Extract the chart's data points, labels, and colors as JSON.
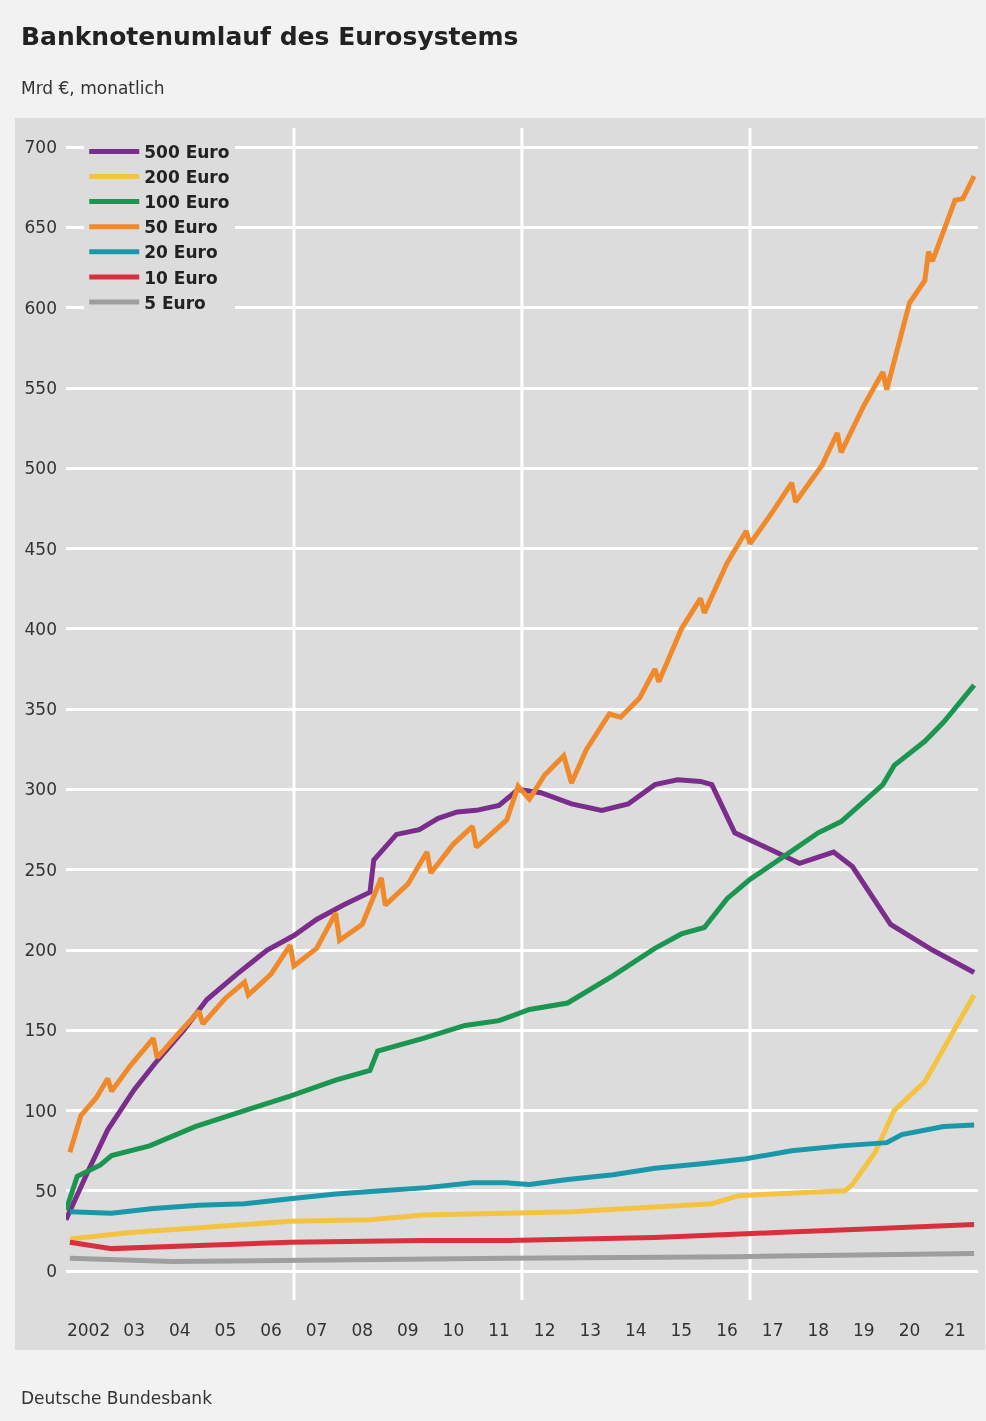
{
  "chart_data": {
    "type": "line",
    "title": "Banknotenumlauf des Eurosystems",
    "subtitle": "Mrd €, monatlich",
    "annotations": [
      "Deutsche Bundesbank"
    ],
    "xlim": [
      "2002-01",
      "2022-01"
    ],
    "ylim": [
      -18,
      712
    ],
    "xticks": [
      {
        "value": "2002-07",
        "label": "2002"
      },
      {
        "value": "2003-07",
        "label": "03"
      },
      {
        "value": "2004-07",
        "label": "04"
      },
      {
        "value": "2005-07",
        "label": "05"
      },
      {
        "value": "2006-07",
        "label": "06"
      },
      {
        "value": "2007-07",
        "label": "07"
      },
      {
        "value": "2008-07",
        "label": "08"
      },
      {
        "value": "2009-07",
        "label": "09"
      },
      {
        "value": "2010-07",
        "label": "10"
      },
      {
        "value": "2011-07",
        "label": "11"
      },
      {
        "value": "2012-07",
        "label": "12"
      },
      {
        "value": "2013-07",
        "label": "13"
      },
      {
        "value": "2014-07",
        "label": "14"
      },
      {
        "value": "2015-07",
        "label": "15"
      },
      {
        "value": "2016-07",
        "label": "16"
      },
      {
        "value": "2017-07",
        "label": "17"
      },
      {
        "value": "2018-07",
        "label": "18"
      },
      {
        "value": "2019-07",
        "label": "19"
      },
      {
        "value": "2020-07",
        "label": "20"
      },
      {
        "value": "2021-07",
        "label": "21"
      }
    ],
    "yticks": [
      0,
      50,
      100,
      150,
      200,
      250,
      300,
      350,
      400,
      450,
      500,
      550,
      600,
      650,
      700
    ],
    "grid": "y",
    "legend": "top left",
    "ref_lines": [
      {
        "axis": "x",
        "value": "2007",
        "label": null,
        "color": "#ffffff"
      },
      {
        "axis": "x",
        "value": "2012",
        "label": null,
        "color": "#ffffff"
      },
      {
        "axis": "x",
        "value": "2017",
        "label": null,
        "color": "#ffffff"
      }
    ],
    "series": [
      {
        "name": "500 Euro",
        "color": "#7b2d8b",
        "x": [
          "2002-01",
          "2002-07",
          "2002-12",
          "2003-07",
          "2004-01",
          "2004-08",
          "2005-02",
          "2005-10",
          "2006-06",
          "2007-01",
          "2007-07",
          "2008-02",
          "2008-09",
          "2008-10",
          "2009-04",
          "2009-10",
          "2010-03",
          "2010-08",
          "2011-01",
          "2011-07",
          "2011-12",
          "2012-06",
          "2013-02",
          "2013-10",
          "2014-05",
          "2014-12",
          "2015-06",
          "2015-12",
          "2016-03",
          "2016-09",
          "2017-06",
          "2018-02",
          "2018-11",
          "2019-04",
          "2020-02",
          "2021-01",
          "2021-12"
        ],
        "values": [
          32,
          63,
          88,
          113,
          131,
          150,
          169,
          185,
          200,
          209,
          219,
          228,
          236,
          256,
          272,
          275,
          282,
          286,
          287,
          290,
          300,
          298,
          291,
          287,
          291,
          303,
          306,
          305,
          303,
          273,
          263,
          254,
          261,
          252,
          216,
          200,
          186
        ]
      },
      {
        "name": "200 Euro",
        "color": "#f5c342",
        "x": [
          "2002-02",
          "2003-06",
          "2004-12",
          "2006-12",
          "2008-09",
          "2009-11",
          "2011-09",
          "2013-02",
          "2014-12",
          "2016-03",
          "2016-10",
          "2019-02",
          "2019-04",
          "2019-10",
          "2020-03",
          "2020-11",
          "2021-12"
        ],
        "values": [
          20,
          24,
          27,
          31,
          32,
          35,
          36,
          37,
          40,
          42,
          47,
          50,
          54,
          74,
          100,
          118,
          172
        ]
      },
      {
        "name": "100 Euro",
        "color": "#1a9650",
        "x": [
          "2002-01",
          "2002-04",
          "2002-10",
          "2003-01",
          "2003-11",
          "2004-11",
          "2005-12",
          "2006-12",
          "2007-12",
          "2008-09",
          "2008-11",
          "2009-11",
          "2010-10",
          "2011-07",
          "2012-03",
          "2013-01",
          "2014-01",
          "2014-12",
          "2015-07",
          "2016-01",
          "2016-07",
          "2017-01",
          "2017-11",
          "2018-07",
          "2019-01",
          "2019-12",
          "2020-03",
          "2020-11",
          "2021-04",
          "2021-12"
        ],
        "values": [
          38,
          59,
          66,
          72,
          78,
          90,
          100,
          109,
          119,
          125,
          137,
          145,
          153,
          156,
          163,
          167,
          184,
          201,
          210,
          214,
          232,
          244,
          260,
          273,
          280,
          303,
          315,
          330,
          342,
          365
        ]
      },
      {
        "name": "50 Euro",
        "color": "#f0892a",
        "x": [
          "2002-02",
          "2002-05",
          "2002-09",
          "2002-12",
          "2003-01",
          "2003-06",
          "2003-12",
          "2004-01",
          "2004-07",
          "2004-12",
          "2005-01",
          "2005-07",
          "2005-12",
          "2006-01",
          "2006-07",
          "2006-12",
          "2007-01",
          "2007-07",
          "2007-12",
          "2008-01",
          "2008-07",
          "2008-12",
          "2009-01",
          "2009-07",
          "2009-12",
          "2010-01",
          "2010-07",
          "2010-12",
          "2011-01",
          "2011-09",
          "2011-12",
          "2012-03",
          "2012-07",
          "2012-12",
          "2013-02",
          "2013-06",
          "2013-12",
          "2014-03",
          "2014-08",
          "2014-12",
          "2015-01",
          "2015-07",
          "2015-12",
          "2016-01",
          "2016-07",
          "2016-12",
          "2017-01",
          "2017-07",
          "2017-12",
          "2018-01",
          "2018-08",
          "2018-12",
          "2019-01",
          "2019-07",
          "2019-12",
          "2020-01",
          "2020-07",
          "2020-11",
          "2020-12",
          "2021-01",
          "2021-07",
          "2021-09",
          "2021-12"
        ],
        "values": [
          74,
          97,
          108,
          120,
          112,
          128,
          145,
          133,
          149,
          162,
          154,
          170,
          180,
          172,
          185,
          203,
          190,
          201,
          223,
          206,
          216,
          245,
          228,
          241,
          261,
          248,
          266,
          277,
          264,
          281,
          302,
          294,
          309,
          321,
          304,
          325,
          347,
          345,
          357,
          375,
          367,
          400,
          419,
          410,
          441,
          461,
          453,
          473,
          491,
          479,
          502,
          522,
          510,
          539,
          560,
          549,
          603,
          617,
          635,
          629,
          667,
          668,
          682
        ]
      },
      {
        "name": "20 Euro",
        "color": "#1a97a8",
        "x": [
          "2002-02",
          "2003-01",
          "2003-12",
          "2004-12",
          "2005-12",
          "2006-12",
          "2007-12",
          "2008-12",
          "2009-12",
          "2010-12",
          "2011-09",
          "2012-03",
          "2013-01",
          "2014-01",
          "2014-12",
          "2016-01",
          "2016-12",
          "2017-12",
          "2019-01",
          "2020-01",
          "2020-05",
          "2021-04",
          "2021-12"
        ],
        "values": [
          37,
          36,
          39,
          41,
          42,
          45,
          48,
          50,
          52,
          55,
          55,
          54,
          57,
          60,
          64,
          67,
          70,
          75,
          78,
          80,
          85,
          90,
          91
        ]
      },
      {
        "name": "10 Euro",
        "color": "#d9303e",
        "x": [
          "2002-02",
          "2003-01",
          "2004-12",
          "2006-12",
          "2009-11",
          "2011-09",
          "2014-12",
          "2017-08",
          "2019-06",
          "2021-12"
        ],
        "values": [
          18,
          14,
          16,
          18,
          19,
          19,
          21,
          24,
          26,
          29
        ]
      },
      {
        "name": "5 Euro",
        "color": "#9e9e9e",
        "x": [
          "2002-02",
          "2004-05",
          "2011-09",
          "2016-10",
          "2021-12"
        ],
        "values": [
          8,
          6,
          8,
          9,
          11
        ]
      }
    ]
  }
}
